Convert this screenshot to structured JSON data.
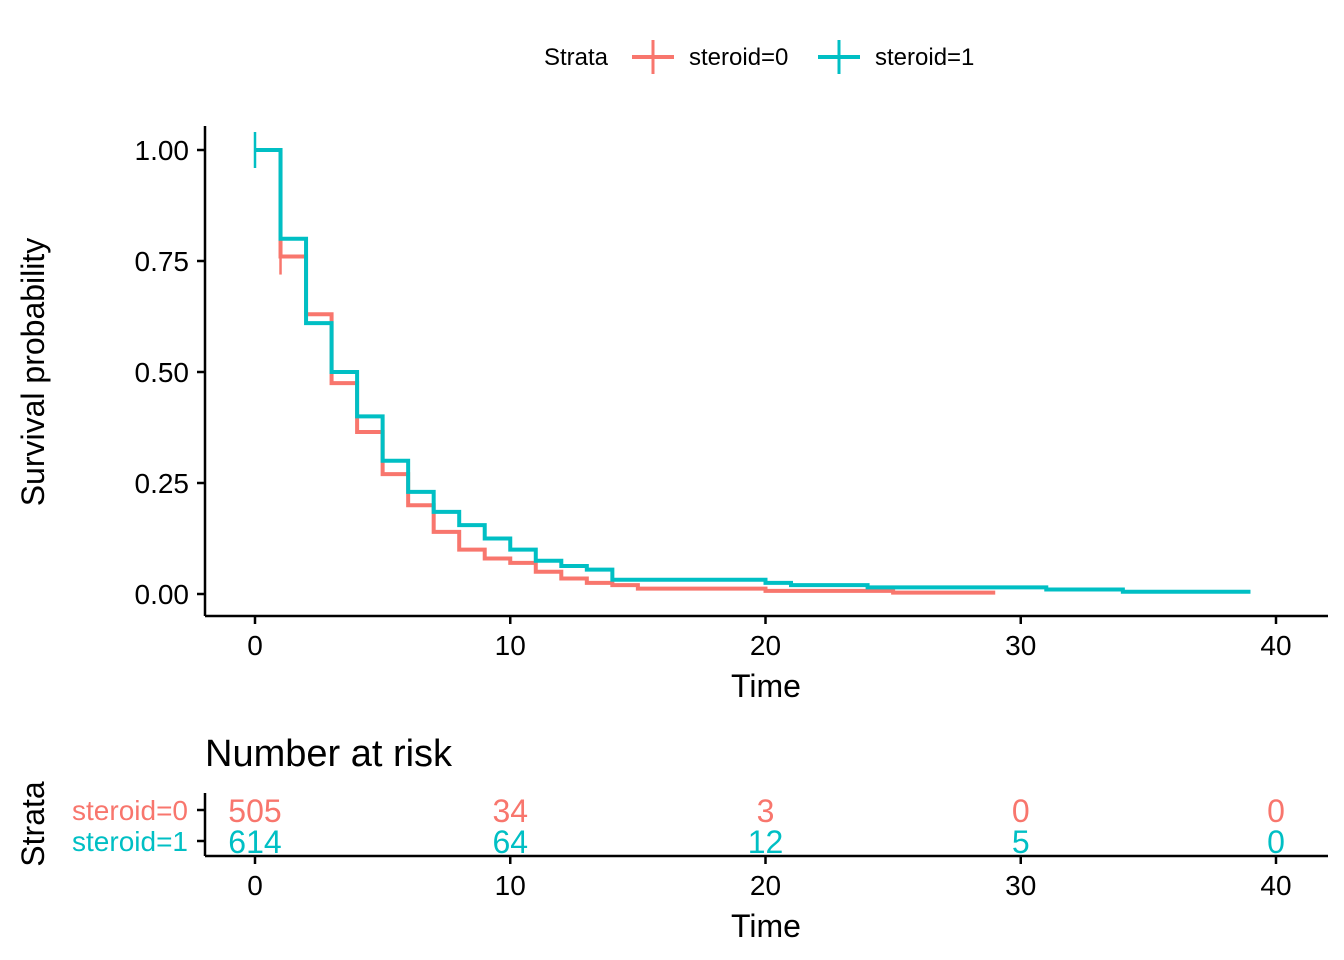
{
  "chart_data": [
    {
      "type": "line",
      "step": true,
      "title": "",
      "xlabel": "Time",
      "ylabel": "Survival probability",
      "xlim": [
        0,
        40
      ],
      "ylim": [
        0,
        1
      ],
      "x_ticks": [
        "0",
        "10",
        "20",
        "30",
        "40"
      ],
      "y_ticks": [
        "0.00",
        "0.25",
        "0.50",
        "0.75",
        "1.00"
      ],
      "legend": {
        "title": "Strata",
        "position": "top",
        "entries": [
          "steroid=0",
          "steroid=1"
        ]
      },
      "series": [
        {
          "name": "steroid=0",
          "color": "#F8766D",
          "x": [
            0,
            1,
            2,
            3,
            4,
            5,
            6,
            7,
            8,
            9,
            10,
            11,
            12,
            13,
            14,
            15,
            20,
            25,
            29
          ],
          "y": [
            1.0,
            0.76,
            0.63,
            0.475,
            0.365,
            0.27,
            0.2,
            0.14,
            0.1,
            0.08,
            0.07,
            0.05,
            0.035,
            0.025,
            0.02,
            0.012,
            0.007,
            0.003,
            0.003
          ],
          "censor_marks": [
            {
              "x": 1,
              "y": 0.76
            }
          ]
        },
        {
          "name": "steroid=1",
          "color": "#00BFC4",
          "x": [
            0,
            1,
            2,
            3,
            4,
            5,
            6,
            7,
            8,
            9,
            10,
            11,
            12,
            13,
            14,
            20,
            21,
            24,
            31,
            34,
            39
          ],
          "y": [
            1.0,
            0.8,
            0.61,
            0.5,
            0.4,
            0.3,
            0.23,
            0.185,
            0.155,
            0.125,
            0.1,
            0.075,
            0.063,
            0.055,
            0.032,
            0.025,
            0.02,
            0.015,
            0.01,
            0.005,
            0.005
          ],
          "censor_marks": [
            {
              "x": 0,
              "y": 1.0
            }
          ]
        }
      ]
    },
    {
      "type": "table",
      "title": "Number at risk",
      "xlabel": "Time",
      "ylabel": "Strata",
      "xlim": [
        0,
        40
      ],
      "x_ticks": [
        "0",
        "10",
        "20",
        "30",
        "40"
      ],
      "times": [
        0,
        10,
        20,
        30,
        40
      ],
      "rows": [
        {
          "name": "steroid=0",
          "color": "#F8766D",
          "values": [
            "505",
            "34",
            "3",
            "0",
            "0"
          ]
        },
        {
          "name": "steroid=1",
          "color": "#00BFC4",
          "values": [
            "614",
            "64",
            "12",
            "5",
            "0"
          ]
        }
      ]
    }
  ]
}
